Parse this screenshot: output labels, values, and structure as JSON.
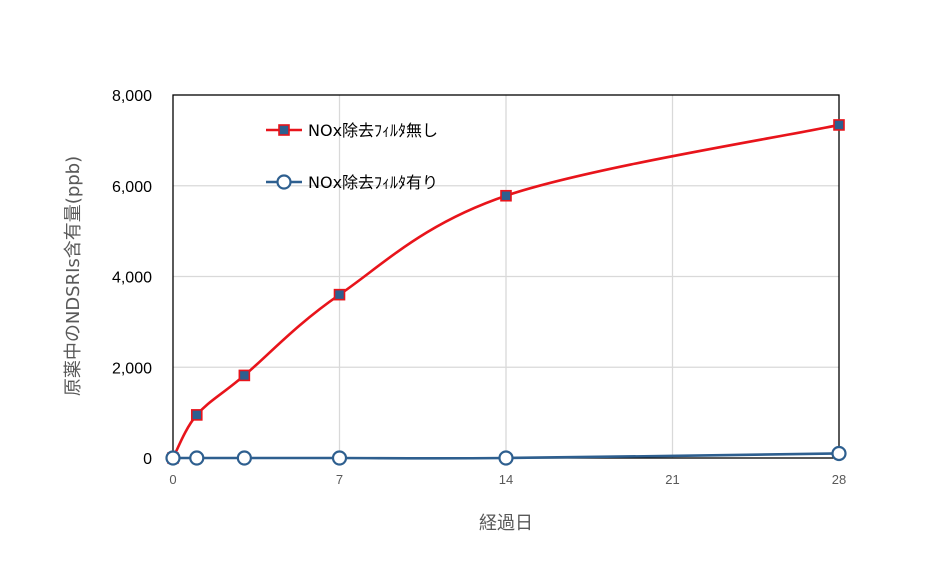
{
  "chart_data": {
    "type": "line",
    "title": "",
    "xlabel": "経過日",
    "ylabel": "原薬中のNDSRIs含有量(ppb)",
    "xlim": [
      0,
      28
    ],
    "ylim": [
      0,
      8000
    ],
    "xticks": [
      0,
      7,
      14,
      21,
      28
    ],
    "xtick_labels": [
      "0",
      "7",
      "14",
      "21",
      "28"
    ],
    "yticks": [
      0,
      2000,
      4000,
      6000,
      8000
    ],
    "ytick_labels": [
      "0",
      "2,000",
      "4,000",
      "6,000",
      "8,000"
    ],
    "grid": true,
    "legend_position": "top-left",
    "series": [
      {
        "name": "NOx除去ﾌｨﾙﾀ無し",
        "color": "#e8141b",
        "marker": "square",
        "marker_color": "#2e5f8f",
        "x": [
          0,
          1,
          3,
          7,
          14,
          28
        ],
        "y": [
          0,
          950,
          1820,
          3600,
          5780,
          7340
        ]
      },
      {
        "name": "NOx除去ﾌｨﾙﾀ有り",
        "color": "#2e5f8f",
        "marker": "circle",
        "marker_color": "#ffffff",
        "x": [
          0,
          1,
          3,
          7,
          14,
          28
        ],
        "y": [
          0,
          0,
          0,
          0,
          0,
          100
        ]
      }
    ]
  }
}
